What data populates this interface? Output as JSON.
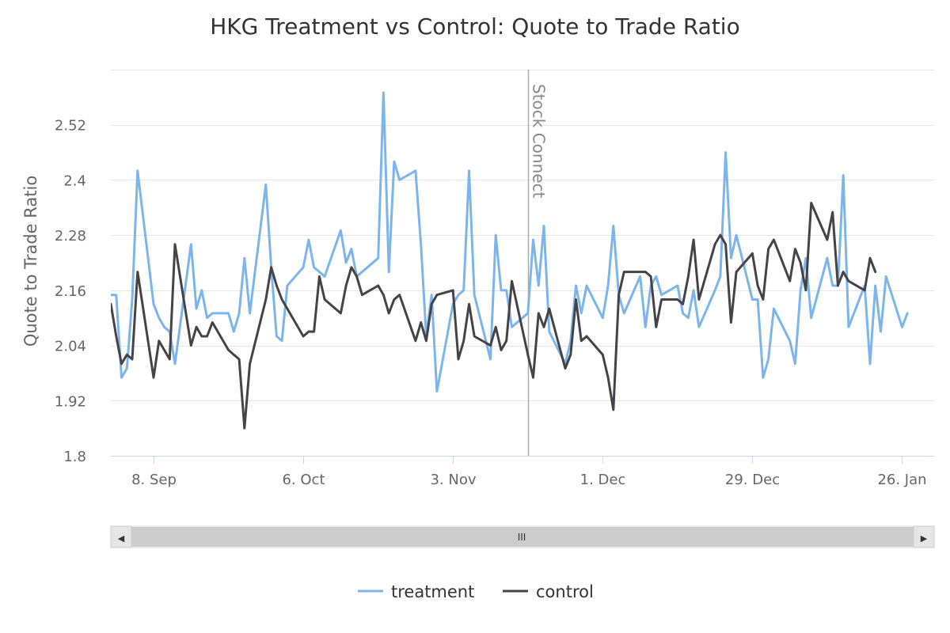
{
  "chart_data": {
    "type": "line",
    "title": "HKG Treatment vs Control: Quote to Trade Ratio",
    "xlabel": "",
    "ylabel": "Quote to Trade Ratio",
    "x_start": "2014-08-31",
    "x_end": "2015-02-01",
    "ylim": [
      1.8,
      2.64
    ],
    "yticks": [
      1.8,
      1.92,
      2.04,
      2.16,
      2.28,
      2.4,
      2.52
    ],
    "ytick_labels": [
      "1.8",
      "1.92",
      "2.04",
      "2.16",
      "2.28",
      "2.4",
      "2.52"
    ],
    "xticks": [
      "2014-09-08",
      "2014-10-06",
      "2014-11-03",
      "2014-12-01",
      "2014-12-29",
      "2015-01-26"
    ],
    "xtick_labels": [
      "8. Sep",
      "6. Oct",
      "3. Nov",
      "1. Dec",
      "29. Dec",
      "26. Jan"
    ],
    "grid": true,
    "legend_position": "bottom",
    "plot_lines": [
      {
        "date": "2014-11-17",
        "label": "Stock Connect",
        "color": "#aaaaaa"
      }
    ],
    "series": [
      {
        "name": "treatment",
        "color": "#7cb5ec",
        "points": [
          [
            "2014-08-31",
            2.15
          ],
          [
            "2014-09-01",
            2.15
          ],
          [
            "2014-09-02",
            1.97
          ],
          [
            "2014-09-03",
            1.99
          ],
          [
            "2014-09-04",
            2.14
          ],
          [
            "2014-09-05",
            2.42
          ],
          [
            "2014-09-08",
            2.13
          ],
          [
            "2014-09-09",
            2.1
          ],
          [
            "2014-09-10",
            2.08
          ],
          [
            "2014-09-11",
            2.07
          ],
          [
            "2014-09-12",
            2.0
          ],
          [
            "2014-09-15",
            2.26
          ],
          [
            "2014-09-16",
            2.12
          ],
          [
            "2014-09-17",
            2.16
          ],
          [
            "2014-09-18",
            2.1
          ],
          [
            "2014-09-19",
            2.11
          ],
          [
            "2014-09-22",
            2.11
          ],
          [
            "2014-09-23",
            2.07
          ],
          [
            "2014-09-24",
            2.11
          ],
          [
            "2014-09-25",
            2.23
          ],
          [
            "2014-09-26",
            2.11
          ],
          [
            "2014-09-29",
            2.39
          ],
          [
            "2014-09-30",
            2.21
          ],
          [
            "2014-10-01",
            2.06
          ],
          [
            "2014-10-02",
            2.05
          ],
          [
            "2014-10-03",
            2.17
          ],
          [
            "2014-10-06",
            2.21
          ],
          [
            "2014-10-07",
            2.27
          ],
          [
            "2014-10-08",
            2.21
          ],
          [
            "2014-10-09",
            2.2
          ],
          [
            "2014-10-10",
            2.19
          ],
          [
            "2014-10-13",
            2.29
          ],
          [
            "2014-10-14",
            2.22
          ],
          [
            "2014-10-15",
            2.25
          ],
          [
            "2014-10-16",
            2.19
          ],
          [
            "2014-10-17",
            2.2
          ],
          [
            "2014-10-20",
            2.23
          ],
          [
            "2014-10-21",
            2.59
          ],
          [
            "2014-10-22",
            2.2
          ],
          [
            "2014-10-23",
            2.44
          ],
          [
            "2014-10-24",
            2.4
          ],
          [
            "2014-10-27",
            2.42
          ],
          [
            "2014-10-28",
            2.26
          ],
          [
            "2014-10-29",
            2.06
          ],
          [
            "2014-10-30",
            2.15
          ],
          [
            "2014-10-31",
            1.94
          ],
          [
            "2014-11-03",
            2.13
          ],
          [
            "2014-11-04",
            2.15
          ],
          [
            "2014-11-05",
            2.16
          ],
          [
            "2014-11-06",
            2.42
          ],
          [
            "2014-11-07",
            2.15
          ],
          [
            "2014-11-10",
            2.01
          ],
          [
            "2014-11-11",
            2.28
          ],
          [
            "2014-11-12",
            2.16
          ],
          [
            "2014-11-13",
            2.16
          ],
          [
            "2014-11-14",
            2.08
          ],
          [
            "2014-11-17",
            2.11
          ],
          [
            "2014-11-18",
            2.27
          ],
          [
            "2014-11-19",
            2.17
          ],
          [
            "2014-11-20",
            2.3
          ],
          [
            "2014-11-21",
            2.07
          ],
          [
            "2014-11-24",
            2.0
          ],
          [
            "2014-11-25",
            2.05
          ],
          [
            "2014-11-26",
            2.17
          ],
          [
            "2014-11-27",
            2.11
          ],
          [
            "2014-11-28",
            2.17
          ],
          [
            "2014-12-01",
            2.1
          ],
          [
            "2014-12-02",
            2.17
          ],
          [
            "2014-12-03",
            2.3
          ],
          [
            "2014-12-04",
            2.15
          ],
          [
            "2014-12-05",
            2.11
          ],
          [
            "2014-12-08",
            2.19
          ],
          [
            "2014-12-09",
            2.08
          ],
          [
            "2014-12-10",
            2.17
          ],
          [
            "2014-12-11",
            2.19
          ],
          [
            "2014-12-12",
            2.15
          ],
          [
            "2014-12-15",
            2.17
          ],
          [
            "2014-12-16",
            2.11
          ],
          [
            "2014-12-17",
            2.1
          ],
          [
            "2014-12-18",
            2.16
          ],
          [
            "2014-12-19",
            2.08
          ],
          [
            "2014-12-22",
            2.16
          ],
          [
            "2014-12-23",
            2.19
          ],
          [
            "2014-12-24",
            2.46
          ],
          [
            "2014-12-25",
            2.23
          ],
          [
            "2014-12-26",
            2.28
          ],
          [
            "2014-12-29",
            2.14
          ],
          [
            "2014-12-30",
            2.14
          ],
          [
            "2014-12-31",
            1.97
          ],
          [
            "2015-01-01",
            2.01
          ],
          [
            "2015-01-02",
            2.12
          ],
          [
            "2015-01-05",
            2.05
          ],
          [
            "2015-01-06",
            2.0
          ],
          [
            "2015-01-07",
            2.16
          ],
          [
            "2015-01-08",
            2.23
          ],
          [
            "2015-01-09",
            2.1
          ],
          [
            "2015-01-12",
            2.23
          ],
          [
            "2015-01-13",
            2.17
          ],
          [
            "2015-01-14",
            2.17
          ],
          [
            "2015-01-15",
            2.41
          ],
          [
            "2015-01-16",
            2.08
          ],
          [
            "2015-01-19",
            2.17
          ],
          [
            "2015-01-20",
            2.0
          ],
          [
            "2015-01-21",
            2.17
          ],
          [
            "2015-01-22",
            2.07
          ],
          [
            "2015-01-23",
            2.19
          ],
          [
            "2015-01-26",
            2.08
          ],
          [
            "2015-01-27",
            2.11
          ]
        ]
      },
      {
        "name": "control",
        "color": "#434348",
        "points": [
          [
            "2014-08-31",
            2.13
          ],
          [
            "2014-09-01",
            2.06
          ],
          [
            "2014-09-02",
            2.0
          ],
          [
            "2014-09-03",
            2.02
          ],
          [
            "2014-09-04",
            2.01
          ],
          [
            "2014-09-05",
            2.2
          ],
          [
            "2014-09-08",
            1.97
          ],
          [
            "2014-09-09",
            2.05
          ],
          [
            "2014-09-10",
            2.03
          ],
          [
            "2014-09-11",
            2.01
          ],
          [
            "2014-09-12",
            2.26
          ],
          [
            "2014-09-15",
            2.04
          ],
          [
            "2014-09-16",
            2.08
          ],
          [
            "2014-09-17",
            2.06
          ],
          [
            "2014-09-18",
            2.06
          ],
          [
            "2014-09-19",
            2.09
          ],
          [
            "2014-09-22",
            2.03
          ],
          [
            "2014-09-23",
            2.02
          ],
          [
            "2014-09-24",
            2.01
          ],
          [
            "2014-09-25",
            1.86
          ],
          [
            "2014-09-26",
            2.0
          ],
          [
            "2014-09-29",
            2.14
          ],
          [
            "2014-09-30",
            2.21
          ],
          [
            "2014-10-01",
            2.17
          ],
          [
            "2014-10-02",
            2.14
          ],
          [
            "2014-10-03",
            2.12
          ],
          [
            "2014-10-06",
            2.06
          ],
          [
            "2014-10-07",
            2.07
          ],
          [
            "2014-10-08",
            2.07
          ],
          [
            "2014-10-09",
            2.19
          ],
          [
            "2014-10-10",
            2.14
          ],
          [
            "2014-10-13",
            2.11
          ],
          [
            "2014-10-14",
            2.17
          ],
          [
            "2014-10-15",
            2.21
          ],
          [
            "2014-10-16",
            2.19
          ],
          [
            "2014-10-17",
            2.15
          ],
          [
            "2014-10-20",
            2.17
          ],
          [
            "2014-10-21",
            2.15
          ],
          [
            "2014-10-22",
            2.11
          ],
          [
            "2014-10-23",
            2.14
          ],
          [
            "2014-10-24",
            2.15
          ],
          [
            "2014-10-27",
            2.05
          ],
          [
            "2014-10-28",
            2.09
          ],
          [
            "2014-10-29",
            2.05
          ],
          [
            "2014-10-30",
            2.13
          ],
          [
            "2014-10-31",
            2.15
          ],
          [
            "2014-11-03",
            2.16
          ],
          [
            "2014-11-04",
            2.01
          ],
          [
            "2014-11-05",
            2.05
          ],
          [
            "2014-11-06",
            2.13
          ],
          [
            "2014-11-07",
            2.06
          ],
          [
            "2014-11-10",
            2.04
          ],
          [
            "2014-11-11",
            2.08
          ],
          [
            "2014-11-12",
            2.03
          ],
          [
            "2014-11-13",
            2.05
          ],
          [
            "2014-11-14",
            2.18
          ],
          [
            "2014-11-17",
            2.02
          ],
          [
            "2014-11-18",
            1.97
          ],
          [
            "2014-11-19",
            2.11
          ],
          [
            "2014-11-20",
            2.08
          ],
          [
            "2014-11-21",
            2.12
          ],
          [
            "2014-11-24",
            1.99
          ],
          [
            "2014-11-25",
            2.02
          ],
          [
            "2014-11-26",
            2.14
          ],
          [
            "2014-11-27",
            2.05
          ],
          [
            "2014-11-28",
            2.06
          ],
          [
            "2014-12-01",
            2.02
          ],
          [
            "2014-12-02",
            1.97
          ],
          [
            "2014-12-03",
            1.9
          ],
          [
            "2014-12-04",
            2.15
          ],
          [
            "2014-12-05",
            2.2
          ],
          [
            "2014-12-08",
            2.2
          ],
          [
            "2014-12-09",
            2.2
          ],
          [
            "2014-12-10",
            2.19
          ],
          [
            "2014-12-11",
            2.08
          ],
          [
            "2014-12-12",
            2.14
          ],
          [
            "2014-12-15",
            2.14
          ],
          [
            "2014-12-16",
            2.13
          ],
          [
            "2014-12-17",
            2.19
          ],
          [
            "2014-12-18",
            2.27
          ],
          [
            "2014-12-19",
            2.14
          ],
          [
            "2014-12-22",
            2.26
          ],
          [
            "2014-12-23",
            2.28
          ],
          [
            "2014-12-24",
            2.26
          ],
          [
            "2014-12-25",
            2.09
          ],
          [
            "2014-12-26",
            2.2
          ],
          [
            "2014-12-29",
            2.24
          ],
          [
            "2014-12-30",
            2.17
          ],
          [
            "2014-12-31",
            2.14
          ],
          [
            "2015-01-01",
            2.25
          ],
          [
            "2015-01-02",
            2.27
          ],
          [
            "2015-01-05",
            2.18
          ],
          [
            "2015-01-06",
            2.25
          ],
          [
            "2015-01-07",
            2.22
          ],
          [
            "2015-01-08",
            2.16
          ],
          [
            "2015-01-09",
            2.35
          ],
          [
            "2015-01-12",
            2.27
          ],
          [
            "2015-01-13",
            2.33
          ],
          [
            "2015-01-14",
            2.17
          ],
          [
            "2015-01-15",
            2.2
          ],
          [
            "2015-01-16",
            2.18
          ],
          [
            "2015-01-19",
            2.16
          ],
          [
            "2015-01-20",
            2.23
          ],
          [
            "2015-01-21",
            2.2
          ]
        ]
      }
    ]
  },
  "navigator": {
    "left_arrow": "◀",
    "right_arrow": "▶",
    "handle_grip": "III"
  },
  "legend": {
    "items": [
      {
        "name": "treatment",
        "color": "#7cb5ec"
      },
      {
        "name": "control",
        "color": "#434348"
      }
    ]
  }
}
